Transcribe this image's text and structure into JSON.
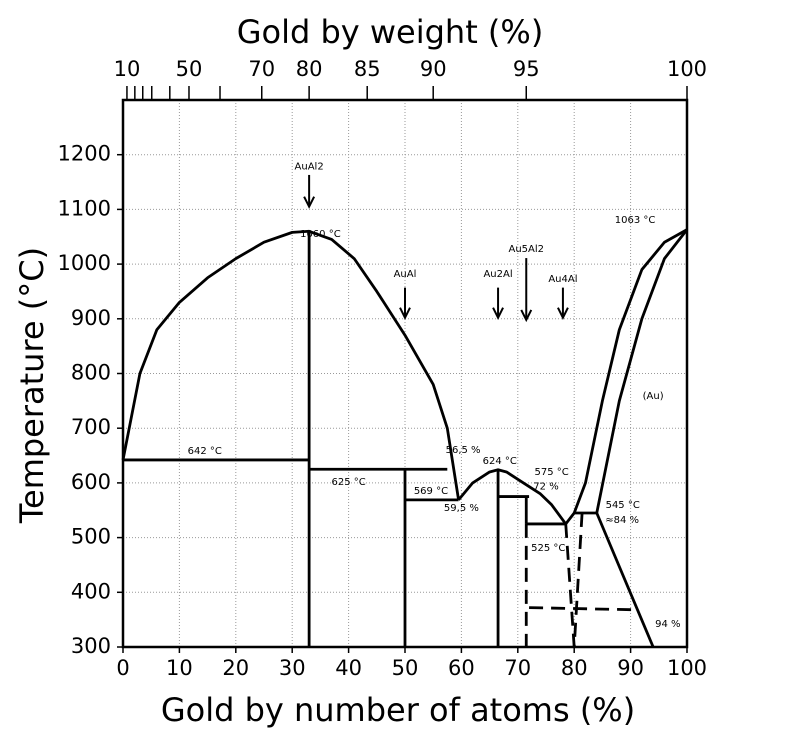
{
  "chart_data": {
    "type": "phase-diagram",
    "title": "Gold by weight (%)",
    "xlabel": "Gold by number of atoms (%)",
    "ylabel": "Temperature (°C)",
    "xlim": [
      0,
      100
    ],
    "ylim": [
      300,
      1300
    ],
    "xticks": [
      0,
      10,
      20,
      30,
      40,
      50,
      60,
      70,
      80,
      90,
      100
    ],
    "yticks": [
      300,
      400,
      500,
      600,
      700,
      800,
      900,
      1000,
      1100,
      1200
    ],
    "x2ticks": [
      {
        "value": 0.7,
        "label": "10"
      },
      {
        "value": 2.1,
        "label": null
      },
      {
        "value": 3.5,
        "label": null
      },
      {
        "value": 5.1,
        "label": null
      },
      {
        "value": 8.3,
        "label": null
      },
      {
        "value": 11.7,
        "label": "50"
      },
      {
        "value": 17.2,
        "label": null
      },
      {
        "value": 24.6,
        "label": "70"
      },
      {
        "value": 33.0,
        "label": "80"
      },
      {
        "value": 43.3,
        "label": "85"
      },
      {
        "value": 55.0,
        "label": "90"
      },
      {
        "value": 71.5,
        "label": "95"
      },
      {
        "value": 100,
        "label": "100"
      }
    ],
    "grid": true,
    "lines": [
      {
        "x": [
          0,
          3,
          6,
          10,
          15,
          20,
          25,
          30,
          33,
          37,
          41,
          45,
          50,
          55,
          57.5,
          59.5
        ],
        "y": [
          642,
          800,
          880,
          930,
          975,
          1010,
          1040,
          1058,
          1060,
          1045,
          1010,
          950,
          870,
          780,
          700,
          569
        ],
        "dashed": false
      },
      {
        "x": [
          59.5,
          62,
          65,
          66.5,
          68,
          71,
          74,
          76,
          78.5
        ],
        "y": [
          569,
          600,
          620,
          624,
          620,
          600,
          580,
          560,
          525
        ],
        "dashed": false
      },
      {
        "x": [
          78.5,
          80,
          82,
          85,
          88,
          92,
          96,
          100
        ],
        "y": [
          525,
          545,
          600,
          750,
          880,
          990,
          1040,
          1063
        ],
        "dashed": false
      },
      {
        "x": [
          100,
          96,
          92,
          88,
          84
        ],
        "y": [
          1063,
          1010,
          900,
          750,
          545
        ],
        "dashed": false
      },
      {
        "x": [
          84,
          94
        ],
        "y": [
          545,
          300
        ],
        "dashed": false
      },
      {
        "x": [
          0,
          33
        ],
        "y": [
          642,
          642
        ],
        "dashed": false
      },
      {
        "x": [
          33,
          57.5
        ],
        "y": [
          625,
          625
        ],
        "dashed": false
      },
      {
        "x": [
          50,
          59.5
        ],
        "y": [
          569,
          569
        ],
        "dashed": false
      },
      {
        "x": [
          66.5,
          72
        ],
        "y": [
          575,
          575
        ],
        "dashed": false
      },
      {
        "x": [
          71.5,
          78.5
        ],
        "y": [
          525,
          525
        ],
        "dashed": false
      },
      {
        "x": [
          80,
          84
        ],
        "y": [
          545,
          545
        ],
        "dashed": false
      },
      {
        "x": [
          33,
          33
        ],
        "y": [
          300,
          1060
        ],
        "dashed": false
      },
      {
        "x": [
          50,
          50
        ],
        "y": [
          300,
          625
        ],
        "dashed": false
      },
      {
        "x": [
          66.5,
          66.5
        ],
        "y": [
          300,
          624
        ],
        "dashed": false
      },
      {
        "x": [
          71.5,
          71.5
        ],
        "y": [
          575,
          525
        ],
        "dashed": false
      },
      {
        "x": [
          71.5,
          71.5
        ],
        "y": [
          525,
          300
        ],
        "dashed": true
      },
      {
        "x": [
          78.5,
          80
        ],
        "y": [
          525,
          300
        ],
        "dashed": true
      },
      {
        "x": [
          81.4,
          80
        ],
        "y": [
          545,
          300
        ],
        "dashed": true
      },
      {
        "x": [
          72,
          91
        ],
        "y": [
          372,
          368
        ],
        "dashed": true
      }
    ],
    "annotations": [
      {
        "text": "AuAl2",
        "x": 33,
        "y": 1178,
        "arrow": [
          1163,
          1105
        ]
      },
      {
        "text": "AuAl",
        "x": 50,
        "y": 982,
        "arrow": [
          957,
          902
        ]
      },
      {
        "text": "Au2Al",
        "x": 66.5,
        "y": 982,
        "arrow": [
          957,
          902
        ]
      },
      {
        "text": "Au5Al2",
        "x": 71.5,
        "y": 1028,
        "arrow": [
          1011,
          898
        ]
      },
      {
        "text": "Au4Al",
        "x": 78,
        "y": 973,
        "arrow": [
          957,
          902
        ]
      },
      {
        "text": "1060 °C",
        "x": 35,
        "y": 1055
      },
      {
        "text": "1063 °C",
        "x": 90.8,
        "y": 1081
      },
      {
        "text": "642 °C",
        "x": 14.5,
        "y": 658
      },
      {
        "text": "625 °C",
        "x": 40,
        "y": 602
      },
      {
        "text": "56,5 %",
        "x": 60.3,
        "y": 660
      },
      {
        "text": "569 °C",
        "x": 54.6,
        "y": 585
      },
      {
        "text": "59,5 %",
        "x": 60,
        "y": 554
      },
      {
        "text": "624 °C",
        "x": 66.8,
        "y": 640
      },
      {
        "text": "575 °C",
        "x": 76,
        "y": 620
      },
      {
        "text": "72 %",
        "x": 75,
        "y": 593
      },
      {
        "text": "545 °C",
        "x": 88.6,
        "y": 560
      },
      {
        "text": "≈84 %",
        "x": 88.5,
        "y": 532
      },
      {
        "text": "525 °C",
        "x": 75.4,
        "y": 481
      },
      {
        "text": "(Au)",
        "x": 94,
        "y": 759
      },
      {
        "text": "94 %",
        "x": 96.6,
        "y": 342
      }
    ]
  }
}
